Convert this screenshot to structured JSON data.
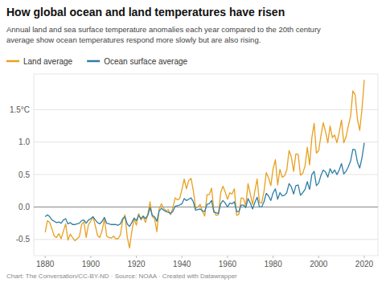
{
  "chart_data": {
    "type": "line",
    "title": "How global ocean and land temperatures have risen",
    "subtitle": "Annual land and sea surface temperature anomalies each year compared to the 20th century\naverage show ocean temperatures respond more slowly but are also rising.",
    "footer": "Chart: The Conversation/CC-BY-ND · Source: NOAA · Created with Datawrapper",
    "legend": "top-left",
    "grid": true,
    "xlim": [
      1875,
      2026
    ],
    "xticks": [
      1880,
      1900,
      1920,
      1940,
      1960,
      1980,
      2000,
      2020
    ],
    "ylim": [
      -0.75,
      2.05
    ],
    "yticks": [
      -0.5,
      {
        "value": 0.0,
        "label": "0.0"
      },
      0.5,
      {
        "value": 1.0,
        "label": "1.0"
      },
      {
        "value": 1.5,
        "label": "1.5°C"
      }
    ],
    "x": [
      1880,
      1881,
      1882,
      1883,
      1884,
      1885,
      1886,
      1887,
      1888,
      1889,
      1890,
      1891,
      1892,
      1893,
      1894,
      1895,
      1896,
      1897,
      1898,
      1899,
      1900,
      1901,
      1902,
      1903,
      1904,
      1905,
      1906,
      1907,
      1908,
      1909,
      1910,
      1911,
      1912,
      1913,
      1914,
      1915,
      1916,
      1917,
      1918,
      1919,
      1920,
      1921,
      1922,
      1923,
      1924,
      1925,
      1926,
      1927,
      1928,
      1929,
      1930,
      1931,
      1932,
      1933,
      1934,
      1935,
      1936,
      1937,
      1938,
      1939,
      1940,
      1941,
      1942,
      1943,
      1944,
      1945,
      1946,
      1947,
      1948,
      1949,
      1950,
      1951,
      1952,
      1953,
      1954,
      1955,
      1956,
      1957,
      1958,
      1959,
      1960,
      1961,
      1962,
      1963,
      1964,
      1965,
      1966,
      1967,
      1968,
      1969,
      1970,
      1971,
      1972,
      1973,
      1974,
      1975,
      1976,
      1977,
      1978,
      1979,
      1980,
      1981,
      1982,
      1983,
      1984,
      1985,
      1986,
      1987,
      1988,
      1989,
      1990,
      1991,
      1992,
      1993,
      1994,
      1995,
      1996,
      1997,
      1998,
      1999,
      2000,
      2001,
      2002,
      2003,
      2004,
      2005,
      2006,
      2007,
      2008,
      2009,
      2010,
      2011,
      2012,
      2013,
      2014,
      2015,
      2016,
      2017,
      2018,
      2019,
      2020
    ],
    "series": [
      {
        "name": "Land average",
        "color": "#E8A020",
        "values": [
          -0.39,
          -0.21,
          -0.24,
          -0.34,
          -0.45,
          -0.47,
          -0.41,
          -0.49,
          -0.37,
          -0.26,
          -0.51,
          -0.42,
          -0.47,
          -0.52,
          -0.49,
          -0.46,
          -0.27,
          -0.23,
          -0.47,
          -0.27,
          -0.22,
          -0.15,
          -0.29,
          -0.44,
          -0.47,
          -0.36,
          -0.18,
          -0.45,
          -0.47,
          -0.48,
          -0.45,
          -0.49,
          -0.49,
          -0.43,
          -0.21,
          -0.12,
          -0.46,
          -0.63,
          -0.38,
          -0.18,
          -0.28,
          -0.1,
          -0.2,
          -0.15,
          -0.24,
          -0.12,
          0.08,
          -0.15,
          -0.18,
          -0.38,
          -0.03,
          0.05,
          -0.02,
          -0.06,
          -0.04,
          -0.12,
          -0.02,
          0.14,
          0.11,
          0.13,
          0.27,
          0.43,
          0.28,
          0.41,
          0.44,
          0.25,
          -0.02,
          0.0,
          0.04,
          -0.07,
          -0.14,
          0.19,
          0.19,
          0.29,
          -0.05,
          -0.13,
          -0.12,
          0.22,
          0.32,
          0.23,
          0.12,
          0.22,
          0.2,
          0.28,
          -0.13,
          -0.11,
          0.14,
          0.13,
          0.02,
          0.36,
          0.2,
          0.04,
          0.25,
          0.43,
          0.07,
          0.06,
          0.24,
          0.53,
          0.45,
          0.33,
          0.59,
          0.73,
          0.34,
          0.58,
          0.46,
          0.48,
          0.57,
          0.87,
          0.77,
          0.55,
          0.82,
          0.81,
          0.49,
          0.52,
          0.63,
          0.92,
          0.65,
          1.07,
          1.29,
          0.83,
          0.87,
          1.1,
          1.3,
          1.16,
          0.99,
          1.25,
          1.07,
          1.11,
          0.99,
          1.15,
          1.34,
          0.99,
          1.08,
          1.25,
          1.4,
          1.79,
          1.73,
          1.35,
          1.18,
          1.51,
          1.96
        ]
      },
      {
        "name": "Ocean surface average",
        "color": "#2E7EA6",
        "values": [
          -0.15,
          -0.12,
          -0.15,
          -0.2,
          -0.22,
          -0.24,
          -0.23,
          -0.25,
          -0.2,
          -0.18,
          -0.26,
          -0.24,
          -0.27,
          -0.27,
          -0.26,
          -0.25,
          -0.21,
          -0.2,
          -0.25,
          -0.2,
          -0.18,
          -0.15,
          -0.2,
          -0.24,
          -0.26,
          -0.22,
          -0.16,
          -0.25,
          -0.26,
          -0.27,
          -0.27,
          -0.27,
          -0.28,
          -0.26,
          -0.18,
          -0.15,
          -0.26,
          -0.3,
          -0.24,
          -0.17,
          -0.21,
          -0.13,
          -0.18,
          -0.14,
          -0.18,
          -0.13,
          -0.01,
          -0.13,
          -0.15,
          -0.22,
          -0.06,
          -0.02,
          -0.05,
          -0.07,
          -0.08,
          -0.1,
          -0.07,
          0.01,
          0.02,
          0.03,
          0.05,
          0.13,
          0.1,
          0.12,
          0.14,
          0.08,
          -0.05,
          -0.04,
          -0.03,
          -0.06,
          -0.07,
          0.04,
          0.05,
          0.1,
          -0.08,
          -0.09,
          -0.1,
          0.05,
          0.1,
          0.06,
          0.0,
          0.06,
          0.05,
          0.08,
          -0.07,
          -0.07,
          0.03,
          0.03,
          -0.01,
          0.13,
          0.06,
          -0.03,
          0.07,
          0.15,
          0.0,
          0.0,
          0.08,
          0.21,
          0.17,
          0.1,
          0.22,
          0.28,
          0.12,
          0.22,
          0.17,
          0.18,
          0.22,
          0.36,
          0.31,
          0.2,
          0.33,
          0.34,
          0.18,
          0.22,
          0.27,
          0.39,
          0.27,
          0.5,
          0.55,
          0.33,
          0.37,
          0.49,
          0.57,
          0.54,
          0.46,
          0.59,
          0.52,
          0.57,
          0.5,
          0.57,
          0.67,
          0.51,
          0.55,
          0.62,
          0.71,
          0.89,
          0.88,
          0.69,
          0.6,
          0.76,
          0.99
        ]
      }
    ]
  }
}
